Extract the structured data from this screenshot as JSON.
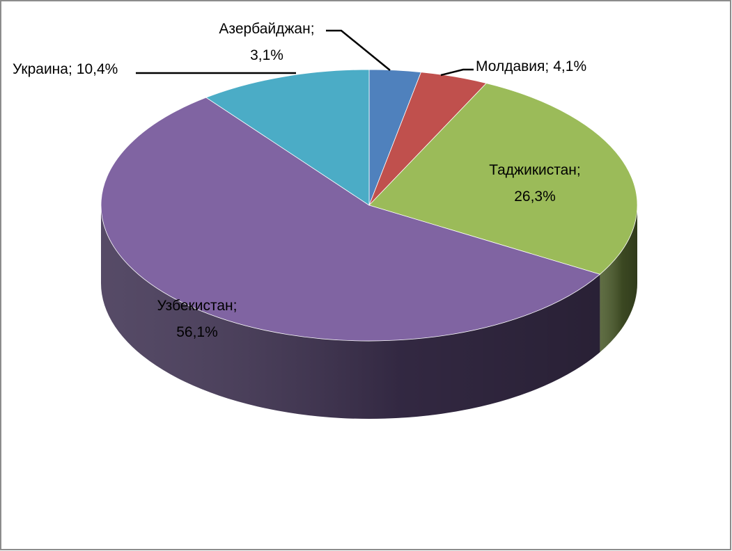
{
  "chart_data": {
    "type": "pie",
    "categories": [
      "Азербайджан",
      "Молдавия",
      "Таджикистан",
      "Узбекистан",
      "Украина"
    ],
    "values": [
      3.1,
      4.1,
      26.3,
      56.1,
      10.4
    ],
    "value_labels": [
      "3,1%",
      "4,1%",
      "26,3%",
      "56,1%",
      "10,4%"
    ],
    "label_separator": ";",
    "colors": [
      "#4f81bd",
      "#c0504d",
      "#9bbb59",
      "#8064a2",
      "#4bacc6"
    ],
    "side_colors": [
      "#3a5f8c",
      "#8e3b39",
      "#4a5a2a",
      "#3f3252",
      "#34788b"
    ]
  }
}
